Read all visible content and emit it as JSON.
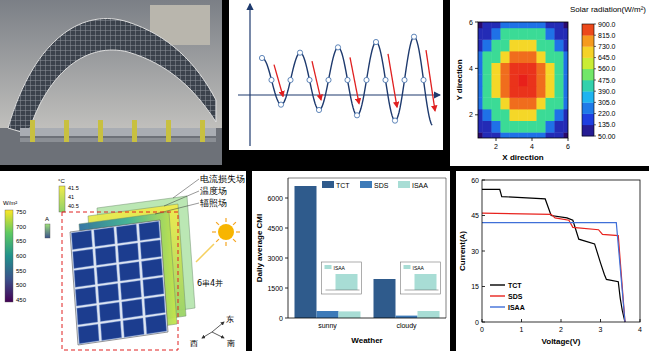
{
  "chart_data": [
    {
      "type": "heatmap",
      "title": "Solar radiation(W/m²)",
      "x_label": "X direction",
      "y_label": "Y direction",
      "x": [
        1,
        1.5,
        2,
        2.5,
        3,
        3.5,
        4,
        4.5,
        5,
        5.5,
        6
      ],
      "y": [
        1,
        1.5,
        2,
        2.5,
        3,
        3.5,
        4,
        4.5,
        5,
        5.5,
        6
      ],
      "values": [
        [
          50,
          130,
          130,
          250,
          250,
          250,
          250,
          250,
          130,
          130,
          50
        ],
        [
          130,
          130,
          250,
          460,
          460,
          460,
          460,
          460,
          250,
          130,
          130
        ],
        [
          130,
          250,
          460,
          460,
          680,
          680,
          680,
          460,
          460,
          250,
          130
        ],
        [
          250,
          460,
          460,
          680,
          820,
          820,
          820,
          680,
          460,
          460,
          250
        ],
        [
          250,
          460,
          680,
          820,
          880,
          880,
          880,
          820,
          680,
          460,
          250
        ],
        [
          250,
          460,
          680,
          820,
          880,
          900,
          880,
          820,
          680,
          460,
          250
        ],
        [
          250,
          460,
          680,
          820,
          880,
          880,
          880,
          820,
          680,
          460,
          250
        ],
        [
          250,
          460,
          460,
          680,
          820,
          820,
          820,
          680,
          460,
          460,
          250
        ],
        [
          130,
          250,
          460,
          460,
          680,
          680,
          680,
          460,
          460,
          250,
          130
        ],
        [
          130,
          130,
          250,
          460,
          460,
          460,
          460,
          460,
          250,
          130,
          130
        ],
        [
          50,
          130,
          130,
          250,
          250,
          250,
          250,
          250,
          130,
          130,
          50
        ]
      ],
      "xlim": [
        1,
        6
      ],
      "ylim": [
        1,
        6
      ],
      "xticks": [
        2,
        4,
        6
      ],
      "yticks": [
        2,
        4,
        6
      ],
      "colorbar": {
        "range": [
          50,
          900
        ],
        "ticks": [
          {
            "value": 50,
            "label": "50.00"
          },
          {
            "value": 135,
            "label": "135.0"
          },
          {
            "value": 220,
            "label": "220.0"
          },
          {
            "value": 305,
            "label": "305.0"
          },
          {
            "value": 390,
            "label": "390.0"
          },
          {
            "value": 475,
            "label": "475.0"
          },
          {
            "value": 560,
            "label": "560.0"
          },
          {
            "value": 645,
            "label": "645.0"
          },
          {
            "value": 730,
            "label": "730.0"
          },
          {
            "value": 815,
            "label": "815.0"
          },
          {
            "value": 900,
            "label": "900.0"
          }
        ]
      }
    },
    {
      "type": "bar",
      "x_label": "Weather",
      "y_label": "Daily average CMI",
      "categories": [
        "sunny",
        "cloudy"
      ],
      "series": [
        {
          "name": "TCT",
          "color": "#2f5b8c",
          "values": [
            6600,
            1950
          ]
        },
        {
          "name": "SDS",
          "color": "#3d7ab8",
          "values": [
            350,
            120
          ]
        },
        {
          "name": "ISAA",
          "color": "#a8ddd5",
          "values": [
            330,
            350
          ]
        }
      ],
      "ylim": [
        0,
        7000
      ],
      "yticks": [
        0,
        1500,
        3000,
        4500,
        6000
      ],
      "legend": "upper center"
    },
    {
      "type": "line",
      "x_label": "Voltage(V)",
      "y_label": "Current(A)",
      "series": [
        {
          "name": "TCT",
          "color": "#000000",
          "x": [
            0,
            0.45,
            0.5,
            1.6,
            1.75,
            2.15,
            2.3,
            2.45,
            2.85,
            3.0,
            3.1,
            3.15,
            3.45,
            3.5,
            3.55,
            3.62
          ],
          "values": [
            56,
            56,
            53,
            52,
            45,
            44,
            43,
            35,
            33,
            25,
            20,
            18,
            17,
            10,
            5,
            0
          ]
        },
        {
          "name": "SDS",
          "color": "#e8231e",
          "x": [
            0,
            1.75,
            1.85,
            2.2,
            2.3,
            2.95,
            3.05,
            3.45,
            3.62
          ],
          "values": [
            46,
            45.5,
            44,
            43,
            40,
            39,
            37,
            36.5,
            0
          ]
        },
        {
          "name": "ISAA",
          "color": "#3f6fd8",
          "x": [
            0,
            3.4,
            3.62
          ],
          "values": [
            42,
            42,
            0
          ]
        }
      ],
      "xlim": [
        0,
        4
      ],
      "ylim": [
        0,
        60
      ],
      "xticks": [
        0,
        1,
        2,
        3,
        4
      ],
      "yticks": [
        0,
        15,
        30,
        45,
        60
      ],
      "legend": "lower left"
    }
  ],
  "diagram": {
    "layers": [
      "电流损失场",
      "温度场",
      "辐照场"
    ],
    "array_label": "6串4并",
    "compass": [
      "东",
      "西",
      "南"
    ],
    "colorbars": [
      {
        "unit": "W/m²",
        "ticks": [
          "750",
          "700",
          "650",
          "600",
          "550",
          "500",
          "450"
        ]
      },
      {
        "unit": "°C",
        "ticks": [
          "41.5",
          "41",
          "40.5"
        ]
      },
      {
        "unit": "A"
      }
    ]
  }
}
